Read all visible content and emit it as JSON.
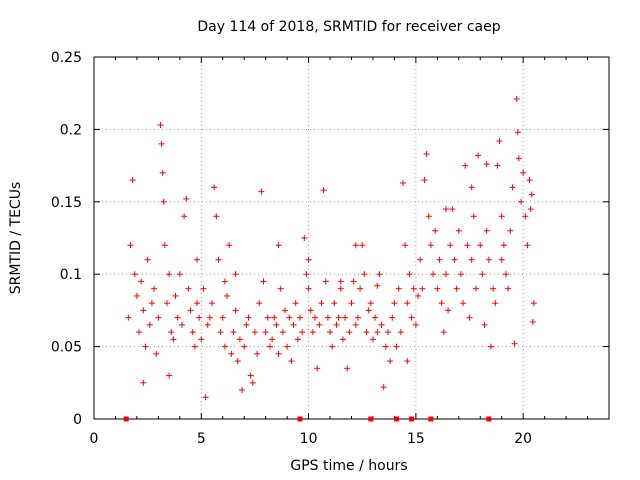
{
  "chart_data": {
    "type": "scatter",
    "title": "Day 114 of 2018, SRMTID for receiver caep",
    "xlabel": "GPS time / hours",
    "ylabel": "SRMTID / TECUs",
    "xlim": [
      0,
      24
    ],
    "ylim": [
      0,
      0.25
    ],
    "x_ticks": [
      0,
      5,
      10,
      15,
      20
    ],
    "x_tick_labels": [
      "0",
      "5",
      "10",
      "15",
      "20"
    ],
    "y_ticks": [
      0,
      0.05,
      0.1,
      0.15,
      0.2,
      0.25
    ],
    "y_tick_labels": [
      "0",
      "0.05",
      "0.1",
      "0.15",
      "0.2",
      "0.25"
    ],
    "grid": true,
    "marker": "+",
    "series_color": "#ff0000",
    "baseline_markers_x": [
      1.5,
      9.6,
      12.9,
      14.1,
      14.8,
      15.7,
      18.4
    ],
    "series": [
      {
        "name": "SRMTID",
        "x_range": [
          1.5,
          20.5
        ],
        "points": [
          [
            1.6,
            0.07
          ],
          [
            1.7,
            0.12
          ],
          [
            1.8,
            0.165
          ],
          [
            1.9,
            0.1
          ],
          [
            2.0,
            0.085
          ],
          [
            2.1,
            0.06
          ],
          [
            2.2,
            0.095
          ],
          [
            2.3,
            0.075
          ],
          [
            2.4,
            0.05
          ],
          [
            2.5,
            0.11
          ],
          [
            2.6,
            0.065
          ],
          [
            2.7,
            0.08
          ],
          [
            2.8,
            0.09
          ],
          [
            2.9,
            0.045
          ],
          [
            3.0,
            0.07
          ],
          [
            3.1,
            0.203
          ],
          [
            3.15,
            0.19
          ],
          [
            3.2,
            0.17
          ],
          [
            3.25,
            0.15
          ],
          [
            3.3,
            0.12
          ],
          [
            3.4,
            0.08
          ],
          [
            3.5,
            0.1
          ],
          [
            3.6,
            0.06
          ],
          [
            3.7,
            0.055
          ],
          [
            3.8,
            0.085
          ],
          [
            3.9,
            0.07
          ],
          [
            4.0,
            0.1
          ],
          [
            4.1,
            0.065
          ],
          [
            4.2,
            0.14
          ],
          [
            4.3,
            0.152
          ],
          [
            4.4,
            0.09
          ],
          [
            4.5,
            0.075
          ],
          [
            4.6,
            0.06
          ],
          [
            4.7,
            0.05
          ],
          [
            4.8,
            0.08
          ],
          [
            4.9,
            0.07
          ],
          [
            5.0,
            0.055
          ],
          [
            5.1,
            0.09
          ],
          [
            5.2,
            0.015
          ],
          [
            5.3,
            0.065
          ],
          [
            5.4,
            0.07
          ],
          [
            5.5,
            0.08
          ],
          [
            5.6,
            0.16
          ],
          [
            5.7,
            0.14
          ],
          [
            5.8,
            0.11
          ],
          [
            5.9,
            0.06
          ],
          [
            6.0,
            0.07
          ],
          [
            6.1,
            0.05
          ],
          [
            6.2,
            0.085
          ],
          [
            6.3,
            0.12
          ],
          [
            6.4,
            0.045
          ],
          [
            6.5,
            0.06
          ],
          [
            6.6,
            0.075
          ],
          [
            6.7,
            0.04
          ],
          [
            6.8,
            0.055
          ],
          [
            6.9,
            0.02
          ],
          [
            7.0,
            0.05
          ],
          [
            7.1,
            0.065
          ],
          [
            7.2,
            0.07
          ],
          [
            7.3,
            0.03
          ],
          [
            7.4,
            0.025
          ],
          [
            7.5,
            0.06
          ],
          [
            7.6,
            0.045
          ],
          [
            7.7,
            0.08
          ],
          [
            7.8,
            0.157
          ],
          [
            7.9,
            0.095
          ],
          [
            8.0,
            0.06
          ],
          [
            8.1,
            0.07
          ],
          [
            8.2,
            0.05
          ],
          [
            8.3,
            0.055
          ],
          [
            8.4,
            0.07
          ],
          [
            8.5,
            0.065
          ],
          [
            8.6,
            0.045
          ],
          [
            8.7,
            0.09
          ],
          [
            8.8,
            0.06
          ],
          [
            8.9,
            0.075
          ],
          [
            9.0,
            0.05
          ],
          [
            9.1,
            0.07
          ],
          [
            9.2,
            0.04
          ],
          [
            9.3,
            0.065
          ],
          [
            9.4,
            0.08
          ],
          [
            9.5,
            0.055
          ],
          [
            9.6,
            0.07
          ],
          [
            9.7,
            0.06
          ],
          [
            9.8,
            0.125
          ],
          [
            9.9,
            0.1
          ],
          [
            10.0,
            0.09
          ],
          [
            10.1,
            0.075
          ],
          [
            10.2,
            0.06
          ],
          [
            10.3,
            0.07
          ],
          [
            10.4,
            0.035
          ],
          [
            10.5,
            0.065
          ],
          [
            10.6,
            0.08
          ],
          [
            10.7,
            0.158
          ],
          [
            10.8,
            0.095
          ],
          [
            10.9,
            0.07
          ],
          [
            11.0,
            0.06
          ],
          [
            11.1,
            0.05
          ],
          [
            11.2,
            0.08
          ],
          [
            11.3,
            0.065
          ],
          [
            11.4,
            0.07
          ],
          [
            11.5,
            0.09
          ],
          [
            11.6,
            0.055
          ],
          [
            11.7,
            0.07
          ],
          [
            11.8,
            0.035
          ],
          [
            11.9,
            0.06
          ],
          [
            12.0,
            0.08
          ],
          [
            12.1,
            0.095
          ],
          [
            12.2,
            0.065
          ],
          [
            12.3,
            0.07
          ],
          [
            12.4,
            0.09
          ],
          [
            12.5,
            0.12
          ],
          [
            12.6,
            0.1
          ],
          [
            12.7,
            0.06
          ],
          [
            12.8,
            0.075
          ],
          [
            12.9,
            0.08
          ],
          [
            13.0,
            0.055
          ],
          [
            13.1,
            0.07
          ],
          [
            13.2,
            0.06
          ],
          [
            13.3,
            0.1
          ],
          [
            13.4,
            0.065
          ],
          [
            13.5,
            0.022
          ],
          [
            13.6,
            0.05
          ],
          [
            13.7,
            0.06
          ],
          [
            13.8,
            0.04
          ],
          [
            13.9,
            0.07
          ],
          [
            14.0,
            0.08
          ],
          [
            14.1,
            0.05
          ],
          [
            14.2,
            0.09
          ],
          [
            14.3,
            0.06
          ],
          [
            14.4,
            0.163
          ],
          [
            14.5,
            0.12
          ],
          [
            14.6,
            0.08
          ],
          [
            14.7,
            0.1
          ],
          [
            14.8,
            0.07
          ],
          [
            14.9,
            0.09
          ],
          [
            15.0,
            0.065
          ],
          [
            15.1,
            0.085
          ],
          [
            15.2,
            0.11
          ],
          [
            15.3,
            0.09
          ],
          [
            15.4,
            0.165
          ],
          [
            15.5,
            0.183
          ],
          [
            15.6,
            0.14
          ],
          [
            15.7,
            0.12
          ],
          [
            15.8,
            0.1
          ],
          [
            15.9,
            0.13
          ],
          [
            16.0,
            0.09
          ],
          [
            16.1,
            0.11
          ],
          [
            16.2,
            0.08
          ],
          [
            16.3,
            0.06
          ],
          [
            16.4,
            0.1
          ],
          [
            16.5,
            0.075
          ],
          [
            16.6,
            0.12
          ],
          [
            16.7,
            0.145
          ],
          [
            16.8,
            0.11
          ],
          [
            16.9,
            0.09
          ],
          [
            17.0,
            0.13
          ],
          [
            17.1,
            0.1
          ],
          [
            17.2,
            0.08
          ],
          [
            17.3,
            0.175
          ],
          [
            17.4,
            0.12
          ],
          [
            17.5,
            0.07
          ],
          [
            17.6,
            0.11
          ],
          [
            17.7,
            0.14
          ],
          [
            17.8,
            0.09
          ],
          [
            17.9,
            0.182
          ],
          [
            18.0,
            0.12
          ],
          [
            18.1,
            0.1
          ],
          [
            18.2,
            0.065
          ],
          [
            18.3,
            0.13
          ],
          [
            18.4,
            0.11
          ],
          [
            18.5,
            0.05
          ],
          [
            18.6,
            0.09
          ],
          [
            18.7,
            0.08
          ],
          [
            18.8,
            0.175
          ],
          [
            18.9,
            0.192
          ],
          [
            19.0,
            0.14
          ],
          [
            19.1,
            0.12
          ],
          [
            19.2,
            0.1
          ],
          [
            19.3,
            0.09
          ],
          [
            19.4,
            0.13
          ],
          [
            19.5,
            0.16
          ],
          [
            19.6,
            0.052
          ],
          [
            19.7,
            0.221
          ],
          [
            19.75,
            0.198
          ],
          [
            19.8,
            0.18
          ],
          [
            19.9,
            0.15
          ],
          [
            20.0,
            0.17
          ],
          [
            20.1,
            0.14
          ],
          [
            20.2,
            0.12
          ],
          [
            20.3,
            0.165
          ],
          [
            20.4,
            0.155
          ],
          [
            20.5,
            0.08
          ],
          [
            20.45,
            0.067
          ],
          [
            20.35,
            0.145
          ],
          [
            2.3,
            0.025
          ],
          [
            3.5,
            0.03
          ],
          [
            4.8,
            0.11
          ],
          [
            6.6,
            0.1
          ],
          [
            8.6,
            0.12
          ],
          [
            11.5,
            0.095
          ],
          [
            12.2,
            0.12
          ],
          [
            13.2,
            0.092
          ],
          [
            16.4,
            0.145
          ],
          [
            17.6,
            0.16
          ],
          [
            18.3,
            0.176
          ],
          [
            19.0,
            0.11
          ],
          [
            14.6,
            0.04
          ],
          [
            10.0,
            0.11
          ],
          [
            6.1,
            0.095
          ]
        ]
      }
    ]
  }
}
